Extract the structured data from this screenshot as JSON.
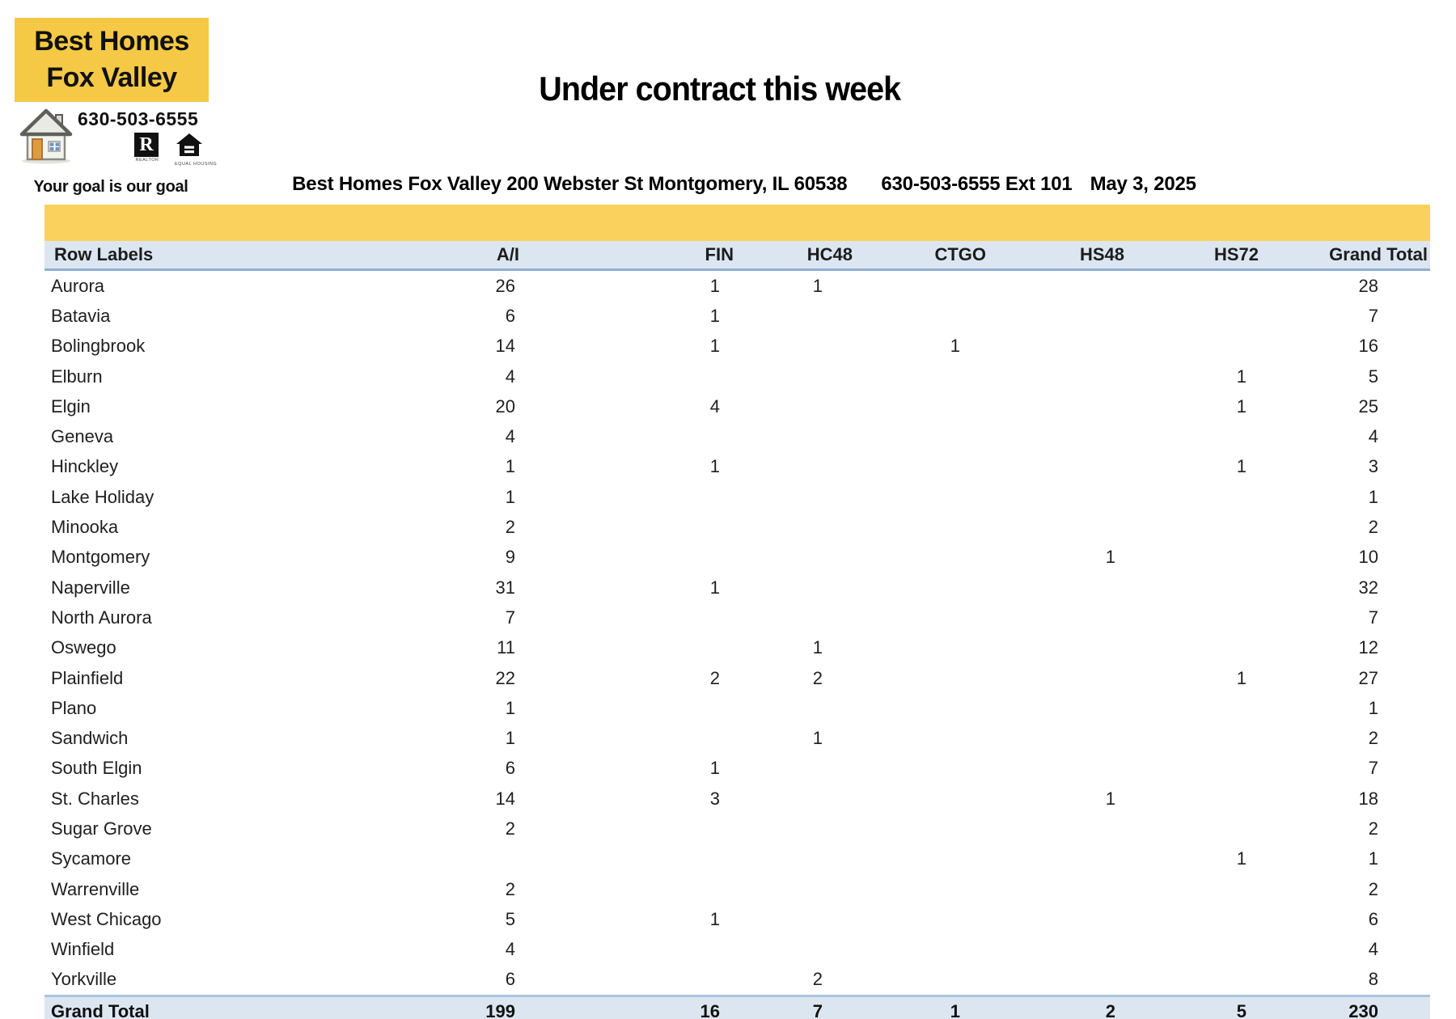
{
  "logo": {
    "line1": "Best Homes",
    "line2": "Fox Valley",
    "phone": "630-503-6555",
    "tagline": "Your goal is our goal",
    "realtor_letter": "R",
    "realtor_caption": "REALTOR",
    "equal_housing_caption": "EQUAL HOUSING"
  },
  "header": {
    "title": "Under contract this week",
    "address": "Best Homes Fox Valley 200 Webster St Montgomery, IL 60538",
    "phone_ext": "630-503-6555 Ext 101",
    "date": "May 3, 2025"
  },
  "table": {
    "columns": [
      "Row Labels",
      "A/I",
      "FIN",
      "HC48",
      "CTGO",
      "HS48",
      "HS72",
      "Grand Total"
    ],
    "column_keys": [
      "row-label",
      "ai",
      "fin",
      "hc48",
      "ctgo",
      "hs48",
      "hs72",
      "grand-total"
    ],
    "rows": [
      [
        "Aurora",
        26,
        1,
        1,
        null,
        null,
        null,
        28
      ],
      [
        "Batavia",
        6,
        1,
        null,
        null,
        null,
        null,
        7
      ],
      [
        "Bolingbrook",
        14,
        1,
        null,
        1,
        null,
        null,
        16
      ],
      [
        "Elburn",
        4,
        null,
        null,
        null,
        null,
        1,
        5
      ],
      [
        "Elgin",
        20,
        4,
        null,
        null,
        null,
        1,
        25
      ],
      [
        "Geneva",
        4,
        null,
        null,
        null,
        null,
        null,
        4
      ],
      [
        "Hinckley",
        1,
        1,
        null,
        null,
        null,
        1,
        3
      ],
      [
        "Lake Holiday",
        1,
        null,
        null,
        null,
        null,
        null,
        1
      ],
      [
        "Minooka",
        2,
        null,
        null,
        null,
        null,
        null,
        2
      ],
      [
        "Montgomery",
        9,
        null,
        null,
        null,
        1,
        null,
        10
      ],
      [
        "Naperville",
        31,
        1,
        null,
        null,
        null,
        null,
        32
      ],
      [
        "North Aurora",
        7,
        null,
        null,
        null,
        null,
        null,
        7
      ],
      [
        "Oswego",
        11,
        null,
        1,
        null,
        null,
        null,
        12
      ],
      [
        "Plainfield",
        22,
        2,
        2,
        null,
        null,
        1,
        27
      ],
      [
        "Plano",
        1,
        null,
        null,
        null,
        null,
        null,
        1
      ],
      [
        "Sandwich",
        1,
        null,
        1,
        null,
        null,
        null,
        2
      ],
      [
        "South Elgin",
        6,
        1,
        null,
        null,
        null,
        null,
        7
      ],
      [
        "St. Charles",
        14,
        3,
        null,
        null,
        1,
        null,
        18
      ],
      [
        "Sugar Grove",
        2,
        null,
        null,
        null,
        null,
        null,
        2
      ],
      [
        "Sycamore",
        null,
        null,
        null,
        null,
        null,
        1,
        1
      ],
      [
        "Warrenville",
        2,
        null,
        null,
        null,
        null,
        null,
        2
      ],
      [
        "West Chicago",
        5,
        1,
        null,
        null,
        null,
        null,
        6
      ],
      [
        "Winfield",
        4,
        null,
        null,
        null,
        null,
        null,
        4
      ],
      [
        "Yorkville",
        6,
        null,
        2,
        null,
        null,
        null,
        8
      ]
    ],
    "grand_total": [
      "Grand Total",
      199,
      16,
      7,
      1,
      2,
      5,
      230
    ]
  },
  "colors": {
    "logo_yellow": "#F5C945",
    "band_yellow": "#FAD15C",
    "header_row_blue": "#DCE6F1",
    "header_divider_blue": "#8FAFD1",
    "total_row_blue": "#DCE6F1",
    "bottom_line_blue": "#E4EBF4",
    "door_orange": "#E09B3D",
    "window_blue": "#6F93C0"
  }
}
